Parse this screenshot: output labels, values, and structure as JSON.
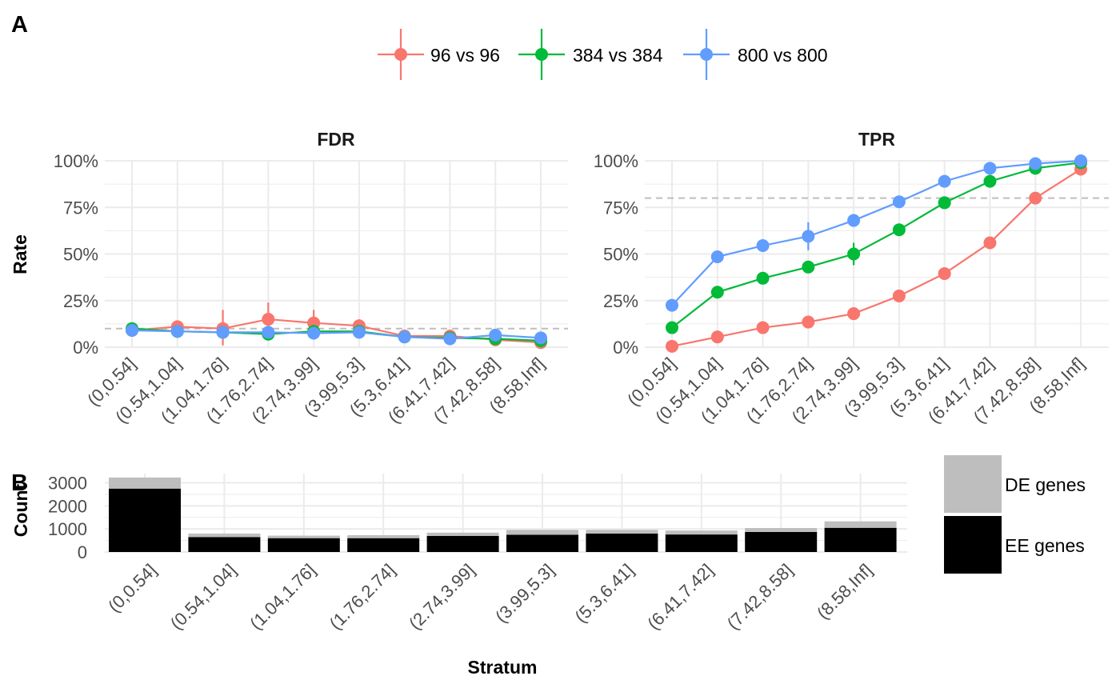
{
  "panel_a_label": "A",
  "panel_b_label": "B",
  "colors": {
    "s96": "#F8766D",
    "s384": "#00BA38",
    "s800": "#619CFF",
    "de": "#BEBEBE",
    "ee": "#000000",
    "grid": "#EBEBEB",
    "ref_line": "#BEBEBE"
  },
  "chart_data": [
    {
      "type": "line",
      "title": "FDR",
      "ylabel": "Rate",
      "ylim": [
        0,
        1
      ],
      "yticks": [
        0,
        0.25,
        0.5,
        0.75,
        1
      ],
      "ytick_labels": [
        "0%",
        "25%",
        "50%",
        "75%",
        "100%"
      ],
      "reference_line": 0.1,
      "categories": [
        "(0,0.54]",
        "(0.54,1.04]",
        "(1.04,1.76]",
        "(1.76,2.74]",
        "(2.74,3.99]",
        "(3.99,5.3]",
        "(5.3,6.41]",
        "(6.41,7.42]",
        "(7.42,8.58]",
        "(8.58,Inf]"
      ],
      "series": [
        {
          "name": "96 vs 96",
          "values": [
            0.09,
            0.11,
            0.1,
            0.15,
            0.13,
            0.115,
            0.06,
            0.06,
            0.04,
            0.025
          ],
          "err_low": [
            0.08,
            0.1,
            0.01,
            0.07,
            0.07,
            0.08,
            0.05,
            0.05,
            0.03,
            0.02
          ],
          "err_high": [
            0.1,
            0.12,
            0.2,
            0.24,
            0.2,
            0.15,
            0.07,
            0.07,
            0.05,
            0.03
          ]
        },
        {
          "name": "384 vs 384",
          "values": [
            0.1,
            0.085,
            0.08,
            0.07,
            0.085,
            0.085,
            0.055,
            0.05,
            0.045,
            0.035
          ],
          "err_low": [
            0.09,
            0.08,
            0.07,
            0.06,
            0.075,
            0.075,
            0.05,
            0.045,
            0.04,
            0.03
          ],
          "err_high": [
            0.11,
            0.09,
            0.09,
            0.08,
            0.095,
            0.095,
            0.06,
            0.055,
            0.05,
            0.04
          ]
        },
        {
          "name": "800 vs 800",
          "values": [
            0.09,
            0.085,
            0.08,
            0.08,
            0.075,
            0.08,
            0.055,
            0.045,
            0.065,
            0.05
          ],
          "err_low": [
            0.08,
            0.08,
            0.075,
            0.07,
            0.065,
            0.07,
            0.05,
            0.04,
            0.06,
            0.045
          ],
          "err_high": [
            0.1,
            0.09,
            0.085,
            0.09,
            0.085,
            0.09,
            0.06,
            0.05,
            0.07,
            0.055
          ]
        }
      ]
    },
    {
      "type": "line",
      "title": "TPR",
      "ylim": [
        0,
        1
      ],
      "yticks": [
        0,
        0.25,
        0.5,
        0.75,
        1
      ],
      "ytick_labels": [
        "0%",
        "25%",
        "50%",
        "75%",
        "100%"
      ],
      "reference_line": 0.8,
      "categories": [
        "(0,0.54]",
        "(0.54,1.04]",
        "(1.04,1.76]",
        "(1.76,2.74]",
        "(2.74,3.99]",
        "(3.99,5.3]",
        "(5.3,6.41]",
        "(6.41,7.42]",
        "(7.42,8.58]",
        "(8.58,Inf]"
      ],
      "series": [
        {
          "name": "96 vs 96",
          "values": [
            0.005,
            0.055,
            0.105,
            0.135,
            0.18,
            0.275,
            0.395,
            0.56,
            0.8,
            0.955
          ],
          "err_low": [
            0.0,
            0.04,
            0.09,
            0.12,
            0.165,
            0.25,
            0.38,
            0.545,
            0.79,
            0.95
          ],
          "err_high": [
            0.01,
            0.07,
            0.12,
            0.15,
            0.195,
            0.3,
            0.41,
            0.575,
            0.81,
            0.96
          ]
        },
        {
          "name": "384 vs 384",
          "values": [
            0.105,
            0.295,
            0.37,
            0.43,
            0.5,
            0.63,
            0.775,
            0.89,
            0.96,
            0.99
          ],
          "err_low": [
            0.09,
            0.28,
            0.355,
            0.41,
            0.44,
            0.615,
            0.76,
            0.88,
            0.955,
            0.985
          ],
          "err_high": [
            0.12,
            0.31,
            0.385,
            0.45,
            0.56,
            0.645,
            0.79,
            0.9,
            0.965,
            0.995
          ]
        },
        {
          "name": "800 vs 800",
          "values": [
            0.225,
            0.485,
            0.545,
            0.595,
            0.68,
            0.78,
            0.89,
            0.96,
            0.985,
            1.0
          ],
          "err_low": [
            0.21,
            0.47,
            0.53,
            0.52,
            0.665,
            0.765,
            0.88,
            0.955,
            0.98,
            0.995
          ],
          "err_high": [
            0.24,
            0.5,
            0.56,
            0.67,
            0.695,
            0.795,
            0.9,
            0.965,
            0.99,
            1.0
          ]
        }
      ]
    },
    {
      "type": "bar",
      "stacked": true,
      "xlabel": "Stratum",
      "ylabel": "Count",
      "ylim": [
        0,
        3400
      ],
      "yticks": [
        0,
        1000,
        2000,
        3000
      ],
      "ytick_labels": [
        "0",
        "1000",
        "2000",
        "3000"
      ],
      "categories": [
        "(0,0.54]",
        "(0.54,1.04]",
        "(1.04,1.76]",
        "(1.76,2.74]",
        "(2.74,3.99]",
        "(3.99,5.3]",
        "(5.3,6.41]",
        "(6.41,7.42]",
        "(7.42,8.58]",
        "(8.58,Inf]"
      ],
      "series": [
        {
          "name": "EE genes",
          "values": [
            2750,
            650,
            600,
            600,
            700,
            750,
            800,
            760,
            870,
            1050
          ]
        },
        {
          "name": "DE genes",
          "values": [
            480,
            150,
            110,
            130,
            140,
            210,
            160,
            170,
            170,
            280
          ]
        }
      ]
    }
  ]
}
